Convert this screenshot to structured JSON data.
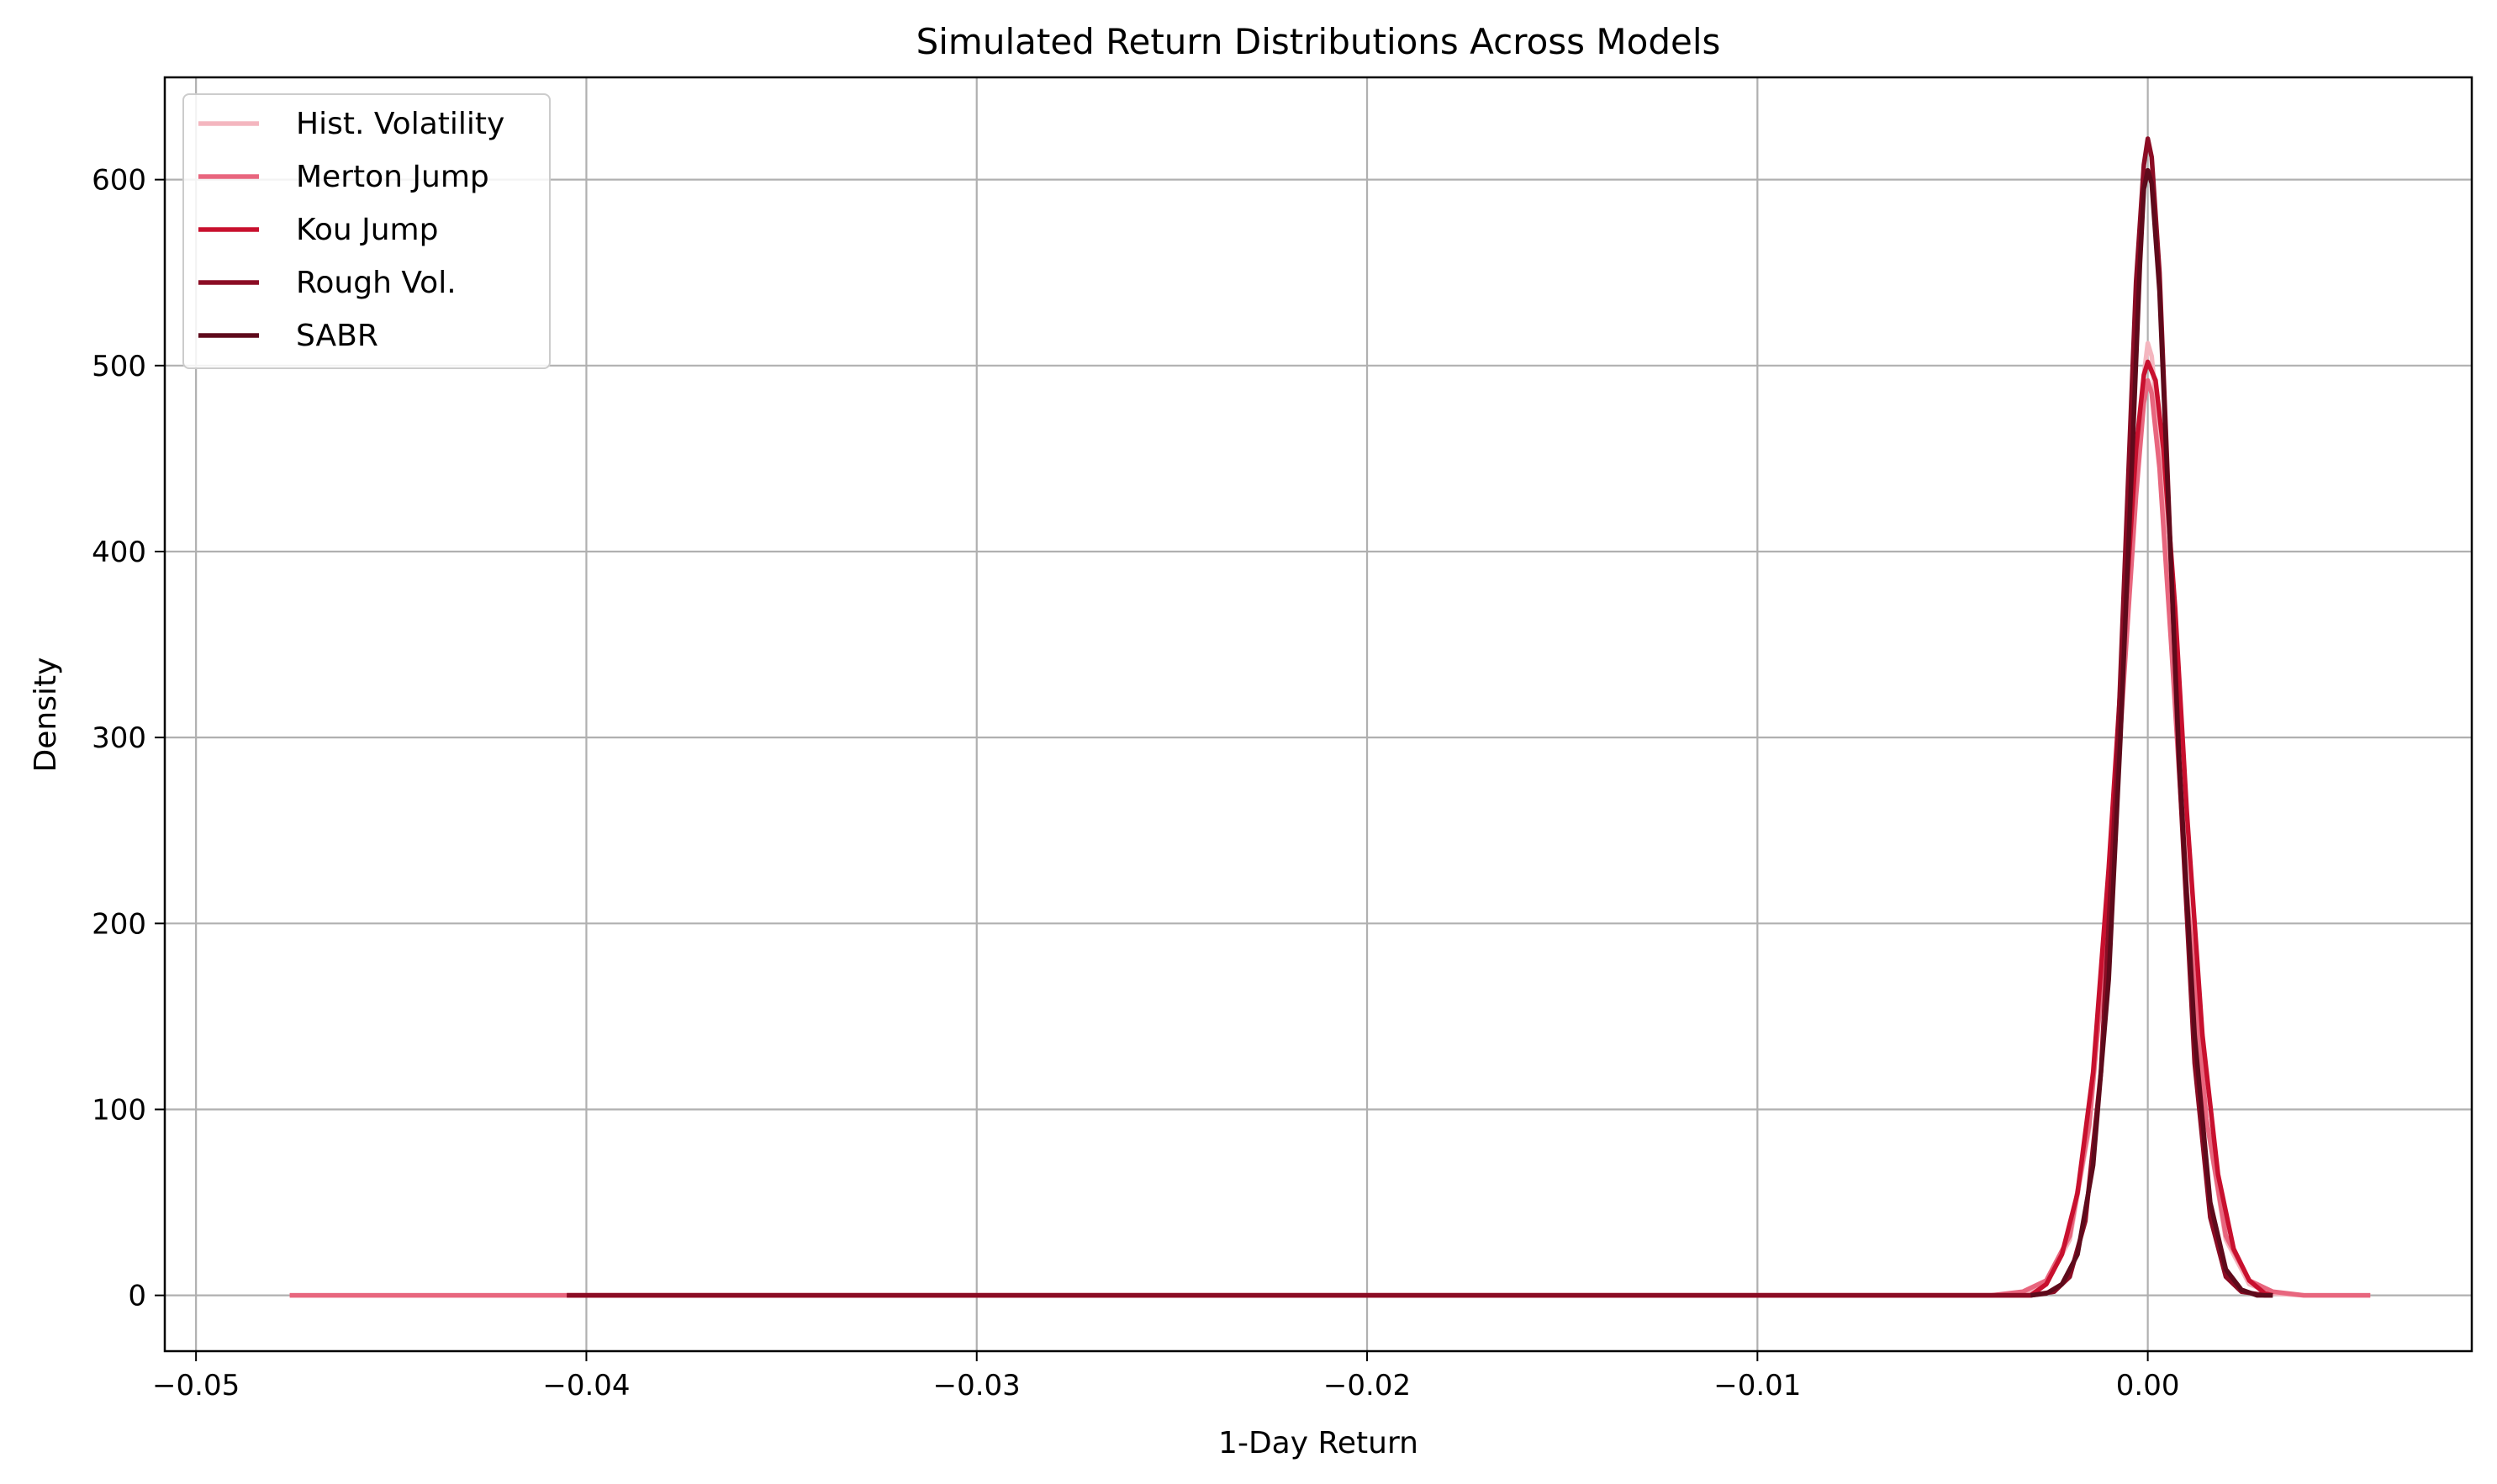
{
  "chart_data": {
    "type": "line",
    "title": "Simulated Return Distributions Across Models",
    "xlabel": "1-Day Return",
    "ylabel": "Density",
    "xlim": [
      -0.0508,
      0.0083
    ],
    "ylim": [
      -30,
      655
    ],
    "x_ticks": [
      -0.05,
      -0.04,
      -0.03,
      -0.02,
      -0.01,
      0.0
    ],
    "x_tick_labels": [
      "−0.05",
      "−0.04",
      "−0.03",
      "−0.02",
      "−0.01",
      "0.00"
    ],
    "y_ticks": [
      0,
      100,
      200,
      300,
      400,
      500,
      600
    ],
    "y_tick_labels": [
      "0",
      "100",
      "200",
      "300",
      "400",
      "500",
      "600"
    ],
    "grid": true,
    "legend_position": "top-left",
    "series": [
      {
        "name": "Hist. Volatility",
        "color": "#f4b6bf",
        "points": [
          [
            -0.0476,
            0
          ],
          [
            -0.004,
            0
          ],
          [
            -0.0032,
            1
          ],
          [
            -0.0026,
            6
          ],
          [
            -0.002,
            30
          ],
          [
            -0.0015,
            90
          ],
          [
            -0.001,
            210
          ],
          [
            -0.0006,
            340
          ],
          [
            -0.0003,
            440
          ],
          [
            -0.0001,
            495
          ],
          [
            0.0,
            512
          ],
          [
            0.0001,
            505
          ],
          [
            0.0003,
            460
          ],
          [
            0.0006,
            360
          ],
          [
            0.001,
            220
          ],
          [
            0.0015,
            95
          ],
          [
            0.002,
            30
          ],
          [
            0.0026,
            6
          ],
          [
            0.0032,
            1
          ],
          [
            0.004,
            0
          ],
          [
            0.0057,
            0
          ]
        ]
      },
      {
        "name": "Merton Jump",
        "color": "#e8667e",
        "points": [
          [
            -0.0476,
            0
          ],
          [
            -0.004,
            0
          ],
          [
            -0.0032,
            2
          ],
          [
            -0.0026,
            8
          ],
          [
            -0.002,
            32
          ],
          [
            -0.0015,
            92
          ],
          [
            -0.001,
            208
          ],
          [
            -0.0006,
            335
          ],
          [
            -0.0003,
            430
          ],
          [
            -0.0001,
            480
          ],
          [
            0.0,
            492
          ],
          [
            0.0001,
            485
          ],
          [
            0.0003,
            445
          ],
          [
            0.0006,
            350
          ],
          [
            0.001,
            215
          ],
          [
            0.0015,
            95
          ],
          [
            0.002,
            32
          ],
          [
            0.0026,
            8
          ],
          [
            0.0032,
            2
          ],
          [
            0.004,
            0
          ],
          [
            0.0057,
            0
          ]
        ]
      },
      {
        "name": "Kou Jump",
        "color": "#c8102e",
        "points": [
          [
            -0.0405,
            0
          ],
          [
            -0.003,
            0
          ],
          [
            -0.0026,
            6
          ],
          [
            -0.0022,
            22
          ],
          [
            -0.0018,
            55
          ],
          [
            -0.0014,
            120
          ],
          [
            -0.001,
            230
          ],
          [
            -0.0006,
            360
          ],
          [
            -0.0003,
            455
          ],
          [
            -0.0001,
            495
          ],
          [
            0.0,
            502
          ],
          [
            0.0002,
            492
          ],
          [
            0.0004,
            455
          ],
          [
            0.0007,
            370
          ],
          [
            0.001,
            260
          ],
          [
            0.0014,
            140
          ],
          [
            0.0018,
            65
          ],
          [
            0.0022,
            25
          ],
          [
            0.0026,
            8
          ],
          [
            0.003,
            1
          ],
          [
            0.0032,
            0
          ]
        ]
      },
      {
        "name": "Rough Vol.",
        "color": "#8b0c24",
        "points": [
          [
            -0.0405,
            0
          ],
          [
            -0.003,
            0
          ],
          [
            -0.0024,
            2
          ],
          [
            -0.002,
            10
          ],
          [
            -0.0016,
            40
          ],
          [
            -0.0012,
            120
          ],
          [
            -0.0008,
            280
          ],
          [
            -0.0005,
            440
          ],
          [
            -0.0003,
            545
          ],
          [
            -0.0001,
            608
          ],
          [
            0.0,
            622
          ],
          [
            0.0001,
            612
          ],
          [
            0.0003,
            550
          ],
          [
            0.0005,
            445
          ],
          [
            0.0008,
            285
          ],
          [
            0.0012,
            125
          ],
          [
            0.0016,
            42
          ],
          [
            0.002,
            10
          ],
          [
            0.0024,
            2
          ],
          [
            0.003,
            0
          ],
          [
            0.0032,
            0
          ]
        ]
      },
      {
        "name": "SABR",
        "color": "#5e0a1b",
        "points": [
          [
            -0.003,
            0
          ],
          [
            -0.0026,
            1
          ],
          [
            -0.0022,
            6
          ],
          [
            -0.0018,
            22
          ],
          [
            -0.0014,
            70
          ],
          [
            -0.001,
            170
          ],
          [
            -0.0007,
            300
          ],
          [
            -0.0004,
            450
          ],
          [
            -0.0002,
            555
          ],
          [
            -0.0001,
            595
          ],
          [
            0.0,
            605
          ],
          [
            0.0001,
            598
          ],
          [
            0.0003,
            540
          ],
          [
            0.0005,
            440
          ],
          [
            0.0008,
            290
          ],
          [
            0.0012,
            140
          ],
          [
            0.0016,
            50
          ],
          [
            0.002,
            14
          ],
          [
            0.0024,
            3
          ],
          [
            0.0028,
            0
          ],
          [
            0.0032,
            0
          ]
        ]
      }
    ]
  }
}
